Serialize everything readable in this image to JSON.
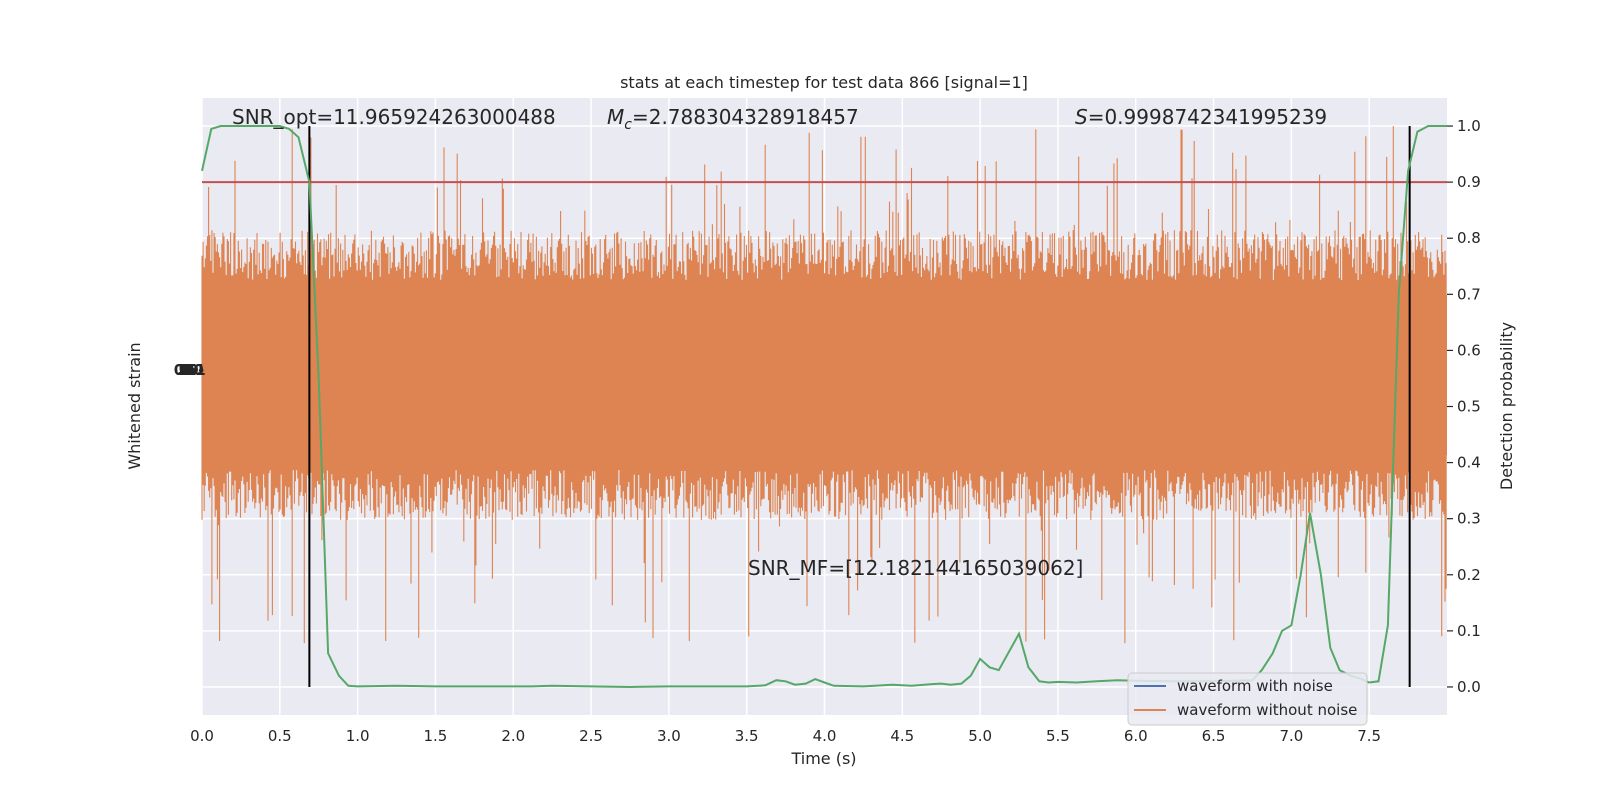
{
  "chart_data": {
    "type": "line",
    "title": "stats at each timestep for test data 866 [signal=1]",
    "xlabel": "Time (s)",
    "ylabel_left": "Whitened strain",
    "ylabel_right": "Detection probability",
    "xlim": [
      0.0,
      8.0
    ],
    "ylim_right": [
      -0.05,
      1.05
    ],
    "x_ticks": [
      "0.0",
      "0.5",
      "1.0",
      "1.5",
      "2.0",
      "2.5",
      "3.0",
      "3.5",
      "4.0",
      "4.5",
      "5.0",
      "5.5",
      "6.0",
      "6.5",
      "7.0",
      "7.5"
    ],
    "right_ticks": [
      "0.0",
      "0.1",
      "0.2",
      "0.3",
      "0.4",
      "0.5",
      "0.6",
      "0.7",
      "0.8",
      "0.9",
      "1.0"
    ],
    "left_ticks_overlapping": "-1.0 -0.5 0.0 0.5 1.0",
    "annotations": {
      "snr_opt": "SNR_opt=11.965924263000488",
      "mc_symbol": "M",
      "mc_sub": "c",
      "mc_value": "=2.788304328918457",
      "s_symbol": "S",
      "s_value": "=0.9998742341995239",
      "snr_mf": "SNR_MF=[12.182144165039062]"
    },
    "threshold": 0.9,
    "window_lines_x": [
      0.69,
      7.76
    ],
    "series": [
      {
        "name": "waveform with noise",
        "color": "#4c72b0"
      },
      {
        "name": "waveform without noise",
        "color": "#dd8452"
      }
    ],
    "detection_probability": {
      "color": "#55a868",
      "x": [
        0.0,
        0.06,
        0.12,
        0.19,
        0.25,
        0.31,
        0.38,
        0.44,
        0.5,
        0.56,
        0.62,
        0.69,
        0.75,
        0.81,
        0.88,
        0.94,
        1.0,
        1.25,
        1.5,
        1.75,
        2.0,
        2.12,
        2.25,
        2.5,
        2.75,
        3.0,
        3.25,
        3.5,
        3.62,
        3.69,
        3.75,
        3.81,
        3.88,
        3.94,
        4.0,
        4.06,
        4.25,
        4.44,
        4.56,
        4.69,
        4.75,
        4.81,
        4.88,
        4.94,
        5.0,
        5.06,
        5.12,
        5.25,
        5.31,
        5.38,
        5.44,
        5.5,
        5.62,
        5.75,
        5.88,
        6.0,
        6.25,
        6.5,
        6.75,
        6.81,
        6.88,
        6.94,
        7.0,
        7.06,
        7.12,
        7.19,
        7.25,
        7.31,
        7.38,
        7.44,
        7.5,
        7.56,
        7.62,
        7.69,
        7.75,
        7.81,
        7.88,
        7.94,
        8.0
      ],
      "y": [
        0.92,
        0.995,
        1.0,
        1.0,
        1.0,
        1.0,
        1.0,
        1.0,
        1.0,
        0.995,
        0.98,
        0.9,
        0.55,
        0.06,
        0.02,
        0.002,
        0.001,
        0.002,
        0.001,
        0.001,
        0.001,
        0.001,
        0.002,
        0.001,
        0.0,
        0.001,
        0.001,
        0.001,
        0.003,
        0.012,
        0.01,
        0.004,
        0.006,
        0.014,
        0.008,
        0.002,
        0.001,
        0.004,
        0.002,
        0.005,
        0.006,
        0.004,
        0.006,
        0.02,
        0.05,
        0.035,
        0.03,
        0.095,
        0.035,
        0.01,
        0.008,
        0.009,
        0.008,
        0.01,
        0.012,
        0.011,
        0.01,
        0.01,
        0.012,
        0.03,
        0.06,
        0.1,
        0.11,
        0.2,
        0.31,
        0.2,
        0.07,
        0.03,
        0.02,
        0.015,
        0.008,
        0.01,
        0.11,
        0.7,
        0.92,
        0.99,
        1.0,
        1.0,
        1.0
      ]
    }
  }
}
